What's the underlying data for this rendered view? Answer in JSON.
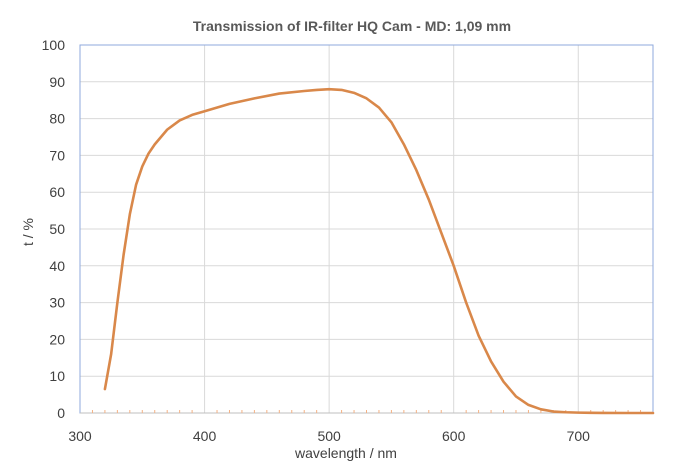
{
  "chart_data": {
    "type": "line",
    "title": "Transmission of IR-filter HQ Cam - MD:  1,09 mm",
    "xlabel": "wavelength / nm",
    "ylabel": "t / %",
    "xlim": [
      300,
      760
    ],
    "ylim": [
      0,
      100
    ],
    "x_ticks": [
      300,
      400,
      500,
      600,
      700
    ],
    "y_ticks": [
      0,
      10,
      20,
      30,
      40,
      50,
      60,
      70,
      80,
      90,
      100
    ],
    "grid": "vertical and horizontal major gridlines",
    "legend": "none",
    "series": [
      {
        "color": "#D9884A",
        "x": [
          320,
          325,
          330,
          335,
          340,
          345,
          350,
          355,
          360,
          370,
          380,
          390,
          400,
          420,
          440,
          460,
          480,
          490,
          500,
          510,
          520,
          530,
          540,
          550,
          560,
          570,
          580,
          590,
          600,
          610,
          620,
          630,
          640,
          650,
          660,
          670,
          680,
          690,
          700,
          710,
          720,
          740,
          760
        ],
        "y": [
          6.5,
          16,
          30,
          43,
          54,
          62,
          67,
          70.5,
          73,
          77,
          79.5,
          81,
          82,
          84,
          85.5,
          86.8,
          87.5,
          87.8,
          88,
          87.8,
          87,
          85.5,
          83,
          79,
          73,
          66,
          58,
          49,
          40,
          30,
          21,
          14,
          8.5,
          4.5,
          2.2,
          1,
          0.4,
          0.2,
          0.1,
          0.05,
          0.02,
          0,
          0
        ]
      }
    ]
  }
}
